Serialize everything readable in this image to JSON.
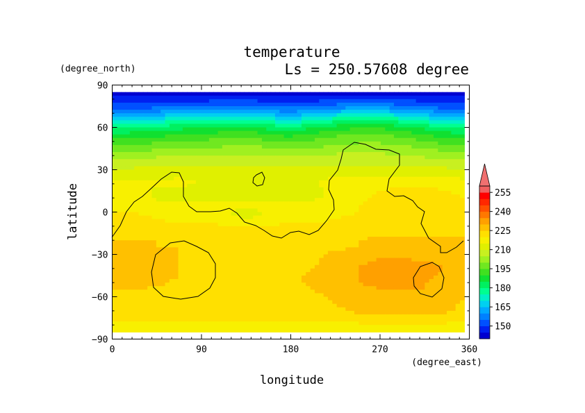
{
  "chart_data": {
    "type": "heatmap",
    "title": "temperature",
    "subtitle": "Ls = 250.57608 degree",
    "xlabel": "longitude",
    "ylabel": "latitude",
    "x_unit": "(degree_east)",
    "y_unit": "(degree_north)",
    "xlim": [
      0,
      360
    ],
    "ylim": [
      -90,
      90
    ],
    "x_ticks": [
      "0",
      "90",
      "180",
      "270",
      "360"
    ],
    "y_ticks": [
      "90",
      "60",
      "30",
      "0",
      "−30",
      "−60",
      "−90"
    ],
    "x_tick_values": [
      0,
      90,
      180,
      270,
      360
    ],
    "y_tick_values": [
      90,
      60,
      30,
      0,
      -30,
      -60,
      -90
    ],
    "grid": false,
    "legend": "right colorbar with upper extension triangle",
    "colorbar": {
      "levels": [
        140,
        145,
        150,
        155,
        160,
        165,
        170,
        175,
        180,
        185,
        190,
        195,
        200,
        205,
        210,
        215,
        220,
        225,
        230,
        235,
        240,
        245,
        250,
        255,
        260
      ],
      "tick_labels": [
        "150",
        "165",
        "180",
        "195",
        "210",
        "225",
        "240",
        "255"
      ],
      "tick_values": [
        150,
        165,
        180,
        195,
        210,
        225,
        240,
        255
      ],
      "colors": [
        "#0000d0",
        "#0020f0",
        "#0050ff",
        "#0080ff",
        "#00a8ff",
        "#00d0f0",
        "#00f0c8",
        "#00ff90",
        "#00f060",
        "#10e030",
        "#40e020",
        "#70e820",
        "#a0f020",
        "#c8f020",
        "#e0f000",
        "#f8f000",
        "#ffe000",
        "#ffc000",
        "#ffa000",
        "#ff7800",
        "#ff5000",
        "#ff2800",
        "#ff0000",
        "#f06060"
      ],
      "over_color": "#f07070"
    },
    "lon": [
      0,
      22.5,
      45,
      67.5,
      90,
      112.5,
      135,
      157.5,
      180,
      202.5,
      225,
      247.5,
      270,
      292.5,
      315,
      337.5,
      355
    ],
    "lat": [
      85,
      80,
      75,
      70,
      65,
      60,
      55,
      50,
      45,
      40,
      35,
      30,
      25,
      20,
      15,
      10,
      5,
      0,
      -5,
      -10,
      -15,
      -20,
      -25,
      -30,
      -35,
      -40,
      -45,
      -50,
      -55,
      -60,
      -65,
      -70,
      -75,
      -80,
      -85
    ],
    "temperature": [
      [
        143,
        143,
        143,
        143,
        143,
        143,
        143,
        143,
        143,
        143,
        143,
        143,
        143,
        143,
        143,
        143,
        143
      ],
      [
        147,
        147,
        147,
        148,
        148,
        149,
        149,
        148,
        147,
        148,
        149,
        150,
        150,
        149,
        148,
        147,
        147
      ],
      [
        152,
        152,
        153,
        154,
        155,
        155,
        156,
        154,
        153,
        155,
        157,
        158,
        158,
        156,
        154,
        152,
        152
      ],
      [
        160,
        161,
        162,
        163,
        164,
        165,
        166,
        163,
        161,
        164,
        167,
        169,
        169,
        166,
        163,
        161,
        160
      ],
      [
        170,
        171,
        172,
        174,
        175,
        176,
        177,
        173,
        171,
        175,
        178,
        180,
        180,
        177,
        173,
        171,
        170
      ],
      [
        179,
        180,
        181,
        183,
        184,
        185,
        186,
        183,
        181,
        184,
        187,
        189,
        189,
        186,
        183,
        180,
        179
      ],
      [
        186,
        187,
        188,
        190,
        191,
        192,
        193,
        190,
        188,
        191,
        194,
        195,
        195,
        193,
        190,
        187,
        186
      ],
      [
        192,
        193,
        194,
        195,
        196,
        197,
        198,
        196,
        194,
        196,
        198,
        199,
        199,
        198,
        195,
        193,
        192
      ],
      [
        197,
        198,
        199,
        200,
        200,
        201,
        202,
        201,
        199,
        200,
        202,
        203,
        203,
        202,
        200,
        198,
        197
      ],
      [
        202,
        203,
        204,
        205,
        205,
        205,
        206,
        205,
        204,
        205,
        206,
        206,
        206,
        205,
        204,
        203,
        202
      ],
      [
        206,
        207,
        208,
        208,
        208,
        208,
        209,
        208,
        208,
        208,
        209,
        209,
        209,
        209,
        208,
        207,
        206
      ],
      [
        210,
        211,
        211,
        211,
        211,
        211,
        211,
        211,
        211,
        211,
        211,
        212,
        212,
        212,
        211,
        211,
        210
      ],
      [
        214,
        214,
        214,
        215,
        214,
        214,
        214,
        214,
        214,
        214,
        215,
        215,
        215,
        216,
        216,
        215,
        214
      ],
      [
        216,
        216,
        216,
        216,
        215,
        214,
        215,
        214,
        214,
        215,
        216,
        217,
        218,
        219,
        219,
        218,
        217
      ],
      [
        217,
        217,
        214,
        213,
        213,
        213,
        213,
        212,
        213,
        214,
        216,
        218,
        220,
        221,
        221,
        220,
        219
      ],
      [
        218,
        218,
        214,
        213,
        213,
        213,
        214,
        213,
        213,
        214,
        216,
        219,
        221,
        222,
        222,
        221,
        220
      ],
      [
        219,
        219,
        217,
        216,
        216,
        216,
        217,
        216,
        216,
        217,
        218,
        220,
        221,
        222,
        222,
        221,
        220
      ],
      [
        220,
        220,
        219,
        218,
        218,
        215,
        214,
        215,
        217,
        218,
        219,
        220,
        221,
        222,
        222,
        221,
        221
      ],
      [
        221,
        221,
        220,
        219,
        219,
        216,
        215,
        216,
        218,
        219,
        220,
        221,
        221,
        222,
        222,
        221,
        221
      ],
      [
        222,
        222,
        221,
        221,
        221,
        221,
        221,
        221,
        221,
        221,
        221,
        221,
        222,
        222,
        222,
        222,
        222
      ],
      [
        223,
        223,
        223,
        223,
        223,
        223,
        223,
        223,
        223,
        223,
        223,
        223,
        224,
        224,
        224,
        224,
        224
      ],
      [
        225,
        225,
        225,
        224,
        224,
        224,
        224,
        224,
        224,
        224,
        224,
        225,
        226,
        226,
        226,
        226,
        226
      ],
      [
        226,
        226,
        225,
        225,
        224,
        224,
        224,
        224,
        224,
        224,
        224,
        225,
        227,
        227,
        227,
        227,
        227
      ],
      [
        227,
        227,
        226,
        225,
        224,
        224,
        223,
        223,
        223,
        224,
        226,
        227,
        228,
        228,
        228,
        227,
        227
      ],
      [
        228,
        228,
        227,
        225,
        224,
        223,
        223,
        223,
        223,
        224,
        227,
        229,
        231,
        231,
        230,
        229,
        228
      ],
      [
        229,
        229,
        228,
        225,
        224,
        223,
        223,
        223,
        223,
        225,
        228,
        230,
        232,
        233,
        232,
        230,
        229
      ],
      [
        229,
        229,
        227,
        225,
        224,
        223,
        223,
        223,
        224,
        226,
        228,
        230,
        232,
        232,
        231,
        229,
        228
      ],
      [
        227,
        227,
        226,
        224,
        223,
        223,
        223,
        223,
        224,
        226,
        228,
        230,
        231,
        231,
        230,
        229,
        227
      ],
      [
        225,
        225,
        224,
        223,
        223,
        223,
        223,
        223,
        223,
        225,
        227,
        229,
        230,
        230,
        230,
        229,
        226
      ],
      [
        224,
        224,
        223,
        223,
        223,
        223,
        223,
        223,
        223,
        224,
        226,
        228,
        229,
        229,
        229,
        228,
        225
      ],
      [
        223,
        223,
        223,
        223,
        223,
        223,
        223,
        223,
        223,
        223,
        225,
        227,
        228,
        228,
        228,
        227,
        224
      ],
      [
        222,
        222,
        222,
        222,
        222,
        222,
        222,
        222,
        222,
        222,
        224,
        226,
        227,
        227,
        227,
        226,
        223
      ],
      [
        221,
        221,
        221,
        221,
        221,
        221,
        221,
        221,
        221,
        221,
        222,
        223,
        224,
        224,
        224,
        223,
        222
      ],
      [
        218,
        218,
        219,
        219,
        219,
        219,
        219,
        219,
        219,
        219,
        219,
        219,
        220,
        220,
        220,
        219,
        218
      ],
      [
        216,
        216,
        217,
        217,
        217,
        217,
        217,
        217,
        217,
        217,
        217,
        217,
        218,
        218,
        218,
        217,
        216
      ]
    ]
  }
}
